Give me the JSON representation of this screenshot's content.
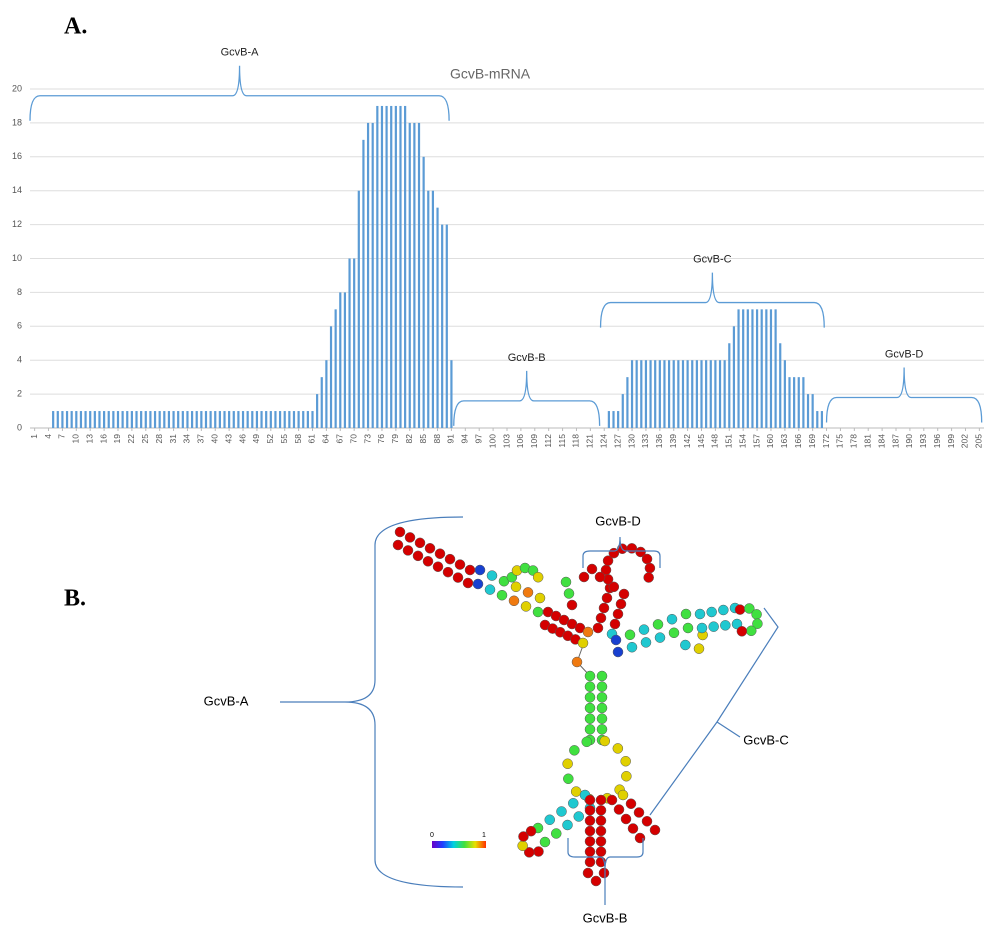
{
  "chart_data": {
    "type": "bar",
    "panel_label": "A.",
    "title": "GcvB-mRNA",
    "color": "#5b9bd5",
    "grid": true,
    "x": [
      1,
      2,
      3,
      4,
      5,
      6,
      7,
      8,
      9,
      10,
      11,
      12,
      13,
      14,
      15,
      16,
      17,
      18,
      19,
      20,
      21,
      22,
      23,
      24,
      25,
      26,
      27,
      28,
      29,
      30,
      31,
      32,
      33,
      34,
      35,
      36,
      37,
      38,
      39,
      40,
      41,
      42,
      43,
      44,
      45,
      46,
      47,
      48,
      49,
      50,
      51,
      52,
      53,
      54,
      55,
      56,
      57,
      58,
      59,
      60,
      61,
      62,
      63,
      64,
      65,
      66,
      67,
      68,
      69,
      70,
      71,
      72,
      73,
      74,
      75,
      76,
      77,
      78,
      79,
      80,
      81,
      82,
      83,
      84,
      85,
      86,
      87,
      88,
      89,
      90,
      91,
      92,
      93,
      94,
      95,
      96,
      97,
      98,
      99,
      100,
      101,
      102,
      103,
      104,
      105,
      106,
      107,
      108,
      109,
      110,
      111,
      112,
      113,
      114,
      115,
      116,
      117,
      118,
      119,
      120,
      121,
      122,
      123,
      124,
      125,
      126,
      127,
      128,
      129,
      130,
      131,
      132,
      133,
      134,
      135,
      136,
      137,
      138,
      139,
      140,
      141,
      142,
      143,
      144,
      145,
      146,
      147,
      148,
      149,
      150,
      151,
      152,
      153,
      154,
      155,
      156,
      157,
      158,
      159,
      160,
      161,
      162,
      163,
      164,
      165,
      166,
      167,
      168,
      169,
      170,
      171,
      172,
      173,
      174,
      175,
      176,
      177,
      178,
      179,
      180,
      181,
      182,
      183,
      184,
      185,
      186,
      187,
      188,
      189,
      190,
      191,
      192,
      193,
      194,
      195,
      196,
      197,
      198,
      199,
      200,
      201,
      202,
      203,
      204,
      205
    ],
    "values": [
      0,
      0,
      0,
      0,
      1,
      1,
      1,
      1,
      1,
      1,
      1,
      1,
      1,
      1,
      1,
      1,
      1,
      1,
      1,
      1,
      1,
      1,
      1,
      1,
      1,
      1,
      1,
      1,
      1,
      1,
      1,
      1,
      1,
      1,
      1,
      1,
      1,
      1,
      1,
      1,
      1,
      1,
      1,
      1,
      1,
      1,
      1,
      1,
      1,
      1,
      1,
      1,
      1,
      1,
      1,
      1,
      1,
      1,
      1,
      1,
      1,
      2,
      3,
      4,
      6,
      7,
      8,
      8,
      10,
      10,
      14,
      17,
      18,
      18,
      19,
      19,
      19,
      19,
      19,
      19,
      19,
      18,
      18,
      18,
      16,
      14,
      14,
      13,
      12,
      12,
      4,
      0,
      0,
      0,
      0,
      0,
      0,
      0,
      0,
      0,
      0,
      0,
      0,
      0,
      0,
      0,
      0,
      0,
      0,
      0,
      0,
      0,
      0,
      0,
      0,
      0,
      0,
      0,
      0,
      0,
      0,
      0,
      0,
      0,
      1,
      1,
      1,
      2,
      3,
      4,
      4,
      4,
      4,
      4,
      4,
      4,
      4,
      4,
      4,
      4,
      4,
      4,
      4,
      4,
      4,
      4,
      4,
      4,
      4,
      4,
      5,
      6,
      7,
      7,
      7,
      7,
      7,
      7,
      7,
      7,
      7,
      5,
      4,
      3,
      3,
      3,
      3,
      2,
      2,
      1,
      1,
      0,
      0,
      0,
      0,
      0,
      0,
      0,
      0,
      0,
      0,
      0,
      0,
      0,
      0,
      0,
      0,
      0,
      0,
      0,
      0,
      0,
      0,
      0,
      0,
      0,
      0,
      0,
      0,
      0,
      0,
      0,
      0,
      0,
      0
    ],
    "xlim": [
      0,
      206
    ],
    "xticks": [
      1,
      4,
      7,
      10,
      13,
      16,
      19,
      22,
      25,
      28,
      31,
      34,
      37,
      40,
      43,
      46,
      49,
      52,
      55,
      58,
      61,
      64,
      67,
      70,
      73,
      76,
      79,
      82,
      85,
      88,
      91,
      94,
      97,
      100,
      103,
      106,
      109,
      112,
      115,
      118,
      121,
      124,
      127,
      130,
      133,
      136,
      139,
      142,
      145,
      148,
      151,
      154,
      157,
      160,
      163,
      166,
      169,
      172,
      175,
      178,
      181,
      184,
      187,
      190,
      193,
      196,
      199,
      202,
      205
    ],
    "ylim": [
      0,
      20
    ],
    "yticks": [
      0,
      2,
      4,
      6,
      8,
      10,
      12,
      14,
      16,
      18,
      20
    ],
    "annotations": [
      {
        "text": "GcvB-A",
        "range": [
          0,
          90.5
        ],
        "level": 19.6
      },
      {
        "text": "GcvB-B",
        "range": [
          91.5,
          123
        ],
        "level": 1.6
      },
      {
        "text": "GcvB-C",
        "range": [
          123.2,
          171.5
        ],
        "level": 7.4
      },
      {
        "text": "GcvB-D",
        "range": [
          172,
          205.5
        ],
        "level": 1.8
      }
    ]
  },
  "structure": {
    "panel_label": "B.",
    "regions": [
      "GcvB-A",
      "GcvB-B",
      "GcvB-C",
      "GcvB-D"
    ],
    "scale": {
      "min": 0,
      "max": 1
    }
  }
}
